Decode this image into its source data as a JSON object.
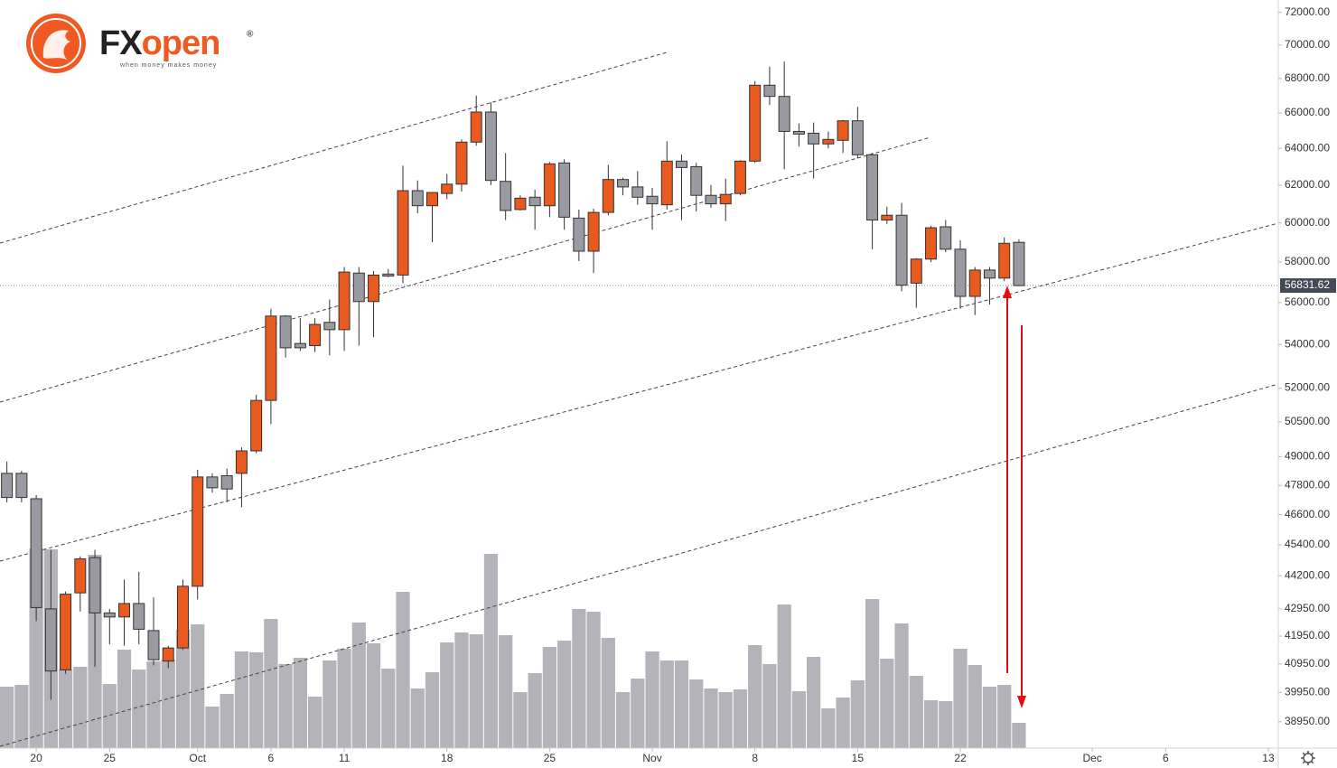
{
  "chart_data": {
    "type": "candlestick",
    "x": [
      "09-18",
      "09-19",
      "09-20",
      "09-21",
      "09-22",
      "09-23",
      "09-24",
      "09-25",
      "09-26",
      "09-27",
      "09-28",
      "09-29",
      "09-30",
      "10-01",
      "10-02",
      "10-03",
      "10-04",
      "10-05",
      "10-06",
      "10-07",
      "10-08",
      "10-09",
      "10-10",
      "10-11",
      "10-12",
      "10-13",
      "10-14",
      "10-15",
      "10-16",
      "10-17",
      "10-18",
      "10-19",
      "10-20",
      "10-21",
      "10-22",
      "10-23",
      "10-24",
      "10-25",
      "10-26",
      "10-27",
      "10-28",
      "10-29",
      "10-30",
      "10-31",
      "11-01",
      "11-02",
      "11-03",
      "11-04",
      "11-05",
      "11-06",
      "11-07",
      "11-08",
      "11-09",
      "11-10",
      "11-11",
      "11-12",
      "11-13",
      "11-14",
      "11-15",
      "11-16",
      "11-17",
      "11-18",
      "11-19",
      "11-20",
      "11-21",
      "11-22",
      "11-23",
      "11-24",
      "11-25",
      "11-26"
    ],
    "open": [
      48300,
      48300,
      47250,
      42950,
      40740,
      43550,
      44900,
      42800,
      42650,
      43150,
      42150,
      41050,
      41520,
      43800,
      48150,
      48200,
      48300,
      49250,
      51450,
      55350,
      54050,
      53950,
      55050,
      54700,
      57450,
      56050,
      57400,
      57350,
      61700,
      60900,
      61550,
      62050,
      64350,
      66050,
      62200,
      60700,
      61350,
      60900,
      63200,
      60250,
      58550,
      60550,
      62300,
      61900,
      61400,
      60950,
      63300,
      63000,
      61450,
      61000,
      61550,
      63300,
      67600,
      66950,
      64950,
      64850,
      64250,
      64450,
      65550,
      63650,
      60150,
      60400,
      56950,
      58150,
      59800,
      58650,
      56300,
      57600,
      57200,
      59000
    ],
    "high": [
      48800,
      48400,
      47400,
      45200,
      43600,
      44950,
      45200,
      42950,
      44050,
      44350,
      43380,
      41600,
      44050,
      48450,
      48300,
      48500,
      49400,
      51700,
      55700,
      55400,
      55250,
      55250,
      56150,
      57750,
      57750,
      57550,
      57650,
      63050,
      62250,
      61600,
      62600,
      64500,
      67000,
      66600,
      63750,
      61450,
      61750,
      63250,
      63400,
      60700,
      60750,
      63100,
      62400,
      62750,
      61850,
      64400,
      63650,
      63200,
      62000,
      62350,
      63350,
      67850,
      68700,
      69000,
      65400,
      65450,
      64950,
      65600,
      66350,
      63750,
      60850,
      61050,
      58200,
      59850,
      60150,
      59100,
      57750,
      57750,
      59250,
      59150
    ],
    "low": [
      47100,
      47100,
      42500,
      39700,
      40600,
      42850,
      40850,
      41650,
      41600,
      41650,
      40900,
      40800,
      41450,
      43300,
      47500,
      47100,
      46900,
      49150,
      50400,
      53400,
      53700,
      53650,
      53500,
      53700,
      53950,
      54350,
      57250,
      56950,
      60500,
      59000,
      61250,
      61650,
      64150,
      62000,
      60150,
      60650,
      59650,
      60300,
      59650,
      58050,
      57450,
      60400,
      61450,
      60950,
      59650,
      60700,
      60150,
      60600,
      60800,
      60100,
      61450,
      63200,
      66450,
      62850,
      64100,
      62350,
      64000,
      63750,
      63450,
      58650,
      59950,
      56550,
      55750,
      58000,
      58500,
      55700,
      55400,
      55900,
      57050,
      56800
    ],
    "close": [
      47300,
      47300,
      43000,
      40700,
      43500,
      44850,
      42800,
      42650,
      43150,
      42200,
      41100,
      41520,
      43800,
      48150,
      47700,
      47650,
      49250,
      51450,
      55350,
      53850,
      53850,
      54950,
      54700,
      57500,
      56050,
      57350,
      57300,
      61700,
      60900,
      61600,
      62050,
      64350,
      66050,
      62250,
      60650,
      61300,
      60900,
      63150,
      60300,
      58550,
      60550,
      62300,
      61900,
      61350,
      61000,
      63300,
      62950,
      61450,
      61000,
      61500,
      63300,
      67600,
      66950,
      64950,
      64800,
      64250,
      64500,
      65550,
      63650,
      60150,
      60400,
      56850,
      58150,
      59750,
      58650,
      56300,
      57600,
      57200,
      58950,
      56831.62
    ],
    "volume": [
      68,
      70,
      221,
      220,
      87,
      90,
      214,
      71,
      109,
      87,
      96,
      98,
      131,
      137,
      46,
      60,
      107,
      106,
      143,
      93,
      100,
      57,
      97,
      110,
      139,
      116,
      88,
      173,
      66,
      84,
      117,
      128,
      126,
      215,
      125,
      62,
      83,
      112,
      119,
      154,
      151,
      122,
      62,
      77,
      107,
      97,
      97,
      76,
      66,
      62,
      65,
      114,
      93,
      159,
      63,
      101,
      44,
      56,
      75,
      165,
      99,
      138,
      80,
      53,
      52,
      110,
      92,
      68,
      70,
      28
    ],
    "up_color": "#e85a1e",
    "down_color": "#9a9ba2",
    "volume_color": "#b3b3b9",
    "log_scale": true,
    "ylim": [
      38070,
      72780
    ],
    "yticks": [
      {
        "value": 72000,
        "label": "72000.00"
      },
      {
        "value": 70000,
        "label": "70000.00"
      },
      {
        "value": 68000,
        "label": "68000.00"
      },
      {
        "value": 66000,
        "label": "66000.00"
      },
      {
        "value": 64000,
        "label": "64000.00"
      },
      {
        "value": 62000,
        "label": "62000.00"
      },
      {
        "value": 60000,
        "label": "60000.00"
      },
      {
        "value": 58000,
        "label": "58000.00"
      },
      {
        "value": 56000,
        "label": "56000.00"
      },
      {
        "value": 54000,
        "label": "54000.00"
      },
      {
        "value": 52000,
        "label": "52000.00"
      },
      {
        "value": 50500,
        "label": "50500.00"
      },
      {
        "value": 49000,
        "label": "49000.00"
      },
      {
        "value": 47800,
        "label": "47800.00"
      },
      {
        "value": 46600,
        "label": "46600.00"
      },
      {
        "value": 45400,
        "label": "45400.00"
      },
      {
        "value": 44200,
        "label": "44200.00"
      },
      {
        "value": 42950,
        "label": "42950.00"
      },
      {
        "value": 41950,
        "label": "41950.00"
      },
      {
        "value": 40950,
        "label": "40950.00"
      },
      {
        "value": 39950,
        "label": "39950.00"
      },
      {
        "value": 38950,
        "label": "38950.00"
      }
    ],
    "xlim": [
      "09-17",
      "12-14"
    ],
    "xticks": [
      {
        "value": "09-20",
        "label": "20"
      },
      {
        "value": "09-25",
        "label": "25"
      },
      {
        "value": "10-01",
        "label": "Oct"
      },
      {
        "value": "10-06",
        "label": "6"
      },
      {
        "value": "10-11",
        "label": "11"
      },
      {
        "value": "10-18",
        "label": "18"
      },
      {
        "value": "10-25",
        "label": "25"
      },
      {
        "value": "11-01",
        "label": "Nov"
      },
      {
        "value": "11-08",
        "label": "8"
      },
      {
        "value": "11-15",
        "label": "15"
      },
      {
        "value": "11-22",
        "label": "22"
      },
      {
        "value": "12-01",
        "label": "Dec"
      },
      {
        "value": "12-06",
        "label": "6"
      },
      {
        "value": "12-13",
        "label": "13"
      }
    ]
  },
  "logo": {
    "brand_a": "FX",
    "brand_b": "open",
    "mark": "®",
    "tagline": "when money makes money"
  }
}
